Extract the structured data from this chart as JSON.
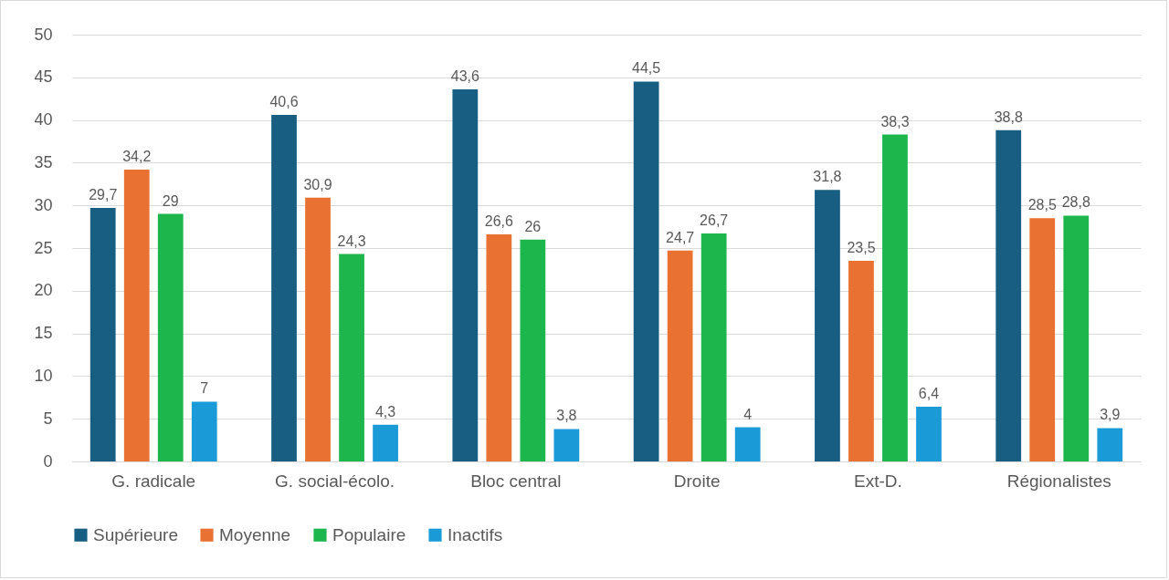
{
  "chart_data": {
    "type": "bar",
    "categories": [
      "G. radicale",
      "G. social-écolo.",
      "Bloc central",
      "Droite",
      "Ext-D.",
      "Régionalistes"
    ],
    "series": [
      {
        "name": "Supérieure",
        "color": "#175e82",
        "values": [
          29.7,
          40.6,
          43.6,
          44.5,
          31.8,
          38.8
        ],
        "value_labels": [
          "29,7",
          "40,6",
          "43,6",
          "44,5",
          "31,8",
          "38,8"
        ]
      },
      {
        "name": "Moyenne",
        "color": "#e97132",
        "values": [
          34.2,
          30.9,
          26.6,
          24.7,
          23.5,
          28.5
        ],
        "value_labels": [
          "34,2",
          "30,9",
          "26,6",
          "24,7",
          "23,5",
          "28,5"
        ]
      },
      {
        "name": "Populaire",
        "color": "#1cb64c",
        "values": [
          29,
          24.3,
          26,
          26.7,
          38.3,
          28.8
        ],
        "value_labels": [
          "29",
          "24,3",
          "26",
          "26,7",
          "38,3",
          "28,8"
        ]
      },
      {
        "name": "Inactifs",
        "color": "#1a9bd7",
        "values": [
          7,
          4.3,
          3.8,
          4,
          6.4,
          3.9
        ],
        "value_labels": [
          "7",
          "4,3",
          "3,8",
          "4",
          "6,4",
          "3,9"
        ]
      }
    ],
    "ylim": [
      0,
      50
    ],
    "yticks": [
      0,
      5,
      10,
      15,
      20,
      25,
      30,
      35,
      40,
      45,
      50
    ],
    "grid": "y",
    "legend": "bottom"
  }
}
